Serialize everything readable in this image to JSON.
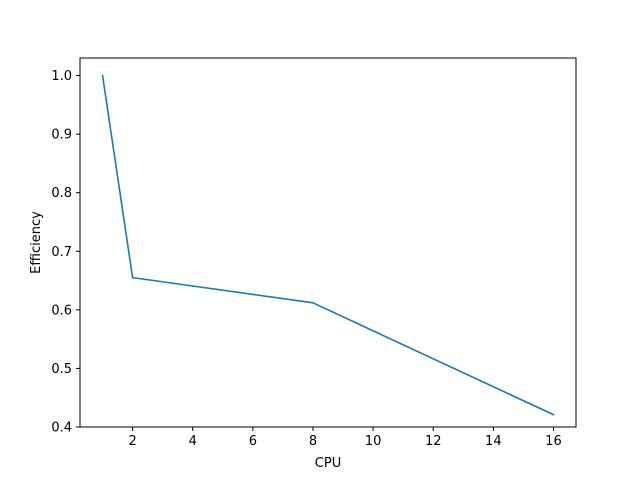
{
  "chart_data": {
    "type": "line",
    "title": "",
    "xlabel": "CPU",
    "ylabel": "Efficiency",
    "xlim": [
      0.25,
      16.75
    ],
    "ylim": [
      0.4,
      1.03
    ],
    "x_ticks": [
      2,
      4,
      6,
      8,
      10,
      12,
      14,
      16
    ],
    "y_ticks": [
      0.4,
      0.5,
      0.6,
      0.7,
      0.8,
      0.9,
      1.0
    ],
    "x_tick_labels": [
      "2",
      "4",
      "6",
      "8",
      "10",
      "12",
      "14",
      "16"
    ],
    "y_tick_labels": [
      "0.4",
      "0.5",
      "0.6",
      "0.7",
      "0.8",
      "0.9",
      "1.0"
    ],
    "grid": false,
    "legend": "none",
    "series": [
      {
        "color": "#1f77b4",
        "x": [
          1,
          2,
          8,
          16
        ],
        "y": [
          1.0,
          0.655,
          0.612,
          0.421
        ]
      }
    ]
  }
}
